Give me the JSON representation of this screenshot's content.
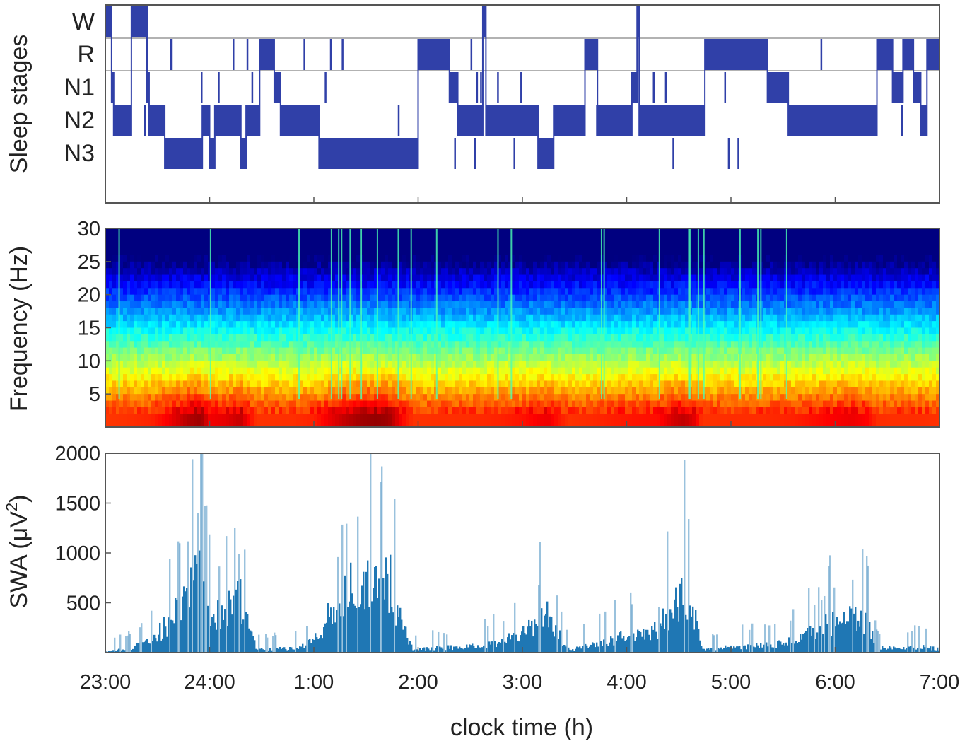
{
  "chart_data": [
    {
      "type": "line",
      "ylabel": "Sleep stages",
      "stage_labels": [
        "W",
        "R",
        "N1",
        "N2",
        "N3"
      ],
      "xlim": [
        23,
        31
      ],
      "hypnogram": [
        [
          23.0,
          "W"
        ],
        [
          23.06,
          "N1"
        ],
        [
          23.08,
          "N2"
        ],
        [
          23.25,
          "W"
        ],
        [
          23.4,
          "N1"
        ],
        [
          23.42,
          "N2"
        ],
        [
          23.57,
          "N3"
        ],
        [
          23.93,
          "N2"
        ],
        [
          24.0,
          "N3"
        ],
        [
          24.05,
          "N2"
        ],
        [
          24.3,
          "N3"
        ],
        [
          24.35,
          "N2"
        ],
        [
          24.48,
          "R"
        ],
        [
          24.62,
          "N1"
        ],
        [
          24.68,
          "N2"
        ],
        [
          25.05,
          "N3"
        ],
        [
          25.18,
          "N3"
        ],
        [
          25.4,
          "N3"
        ],
        [
          25.6,
          "N3"
        ],
        [
          25.72,
          "N3"
        ],
        [
          26.0,
          "R"
        ],
        [
          26.3,
          "N1"
        ],
        [
          26.38,
          "N2"
        ],
        [
          26.6,
          "N2"
        ],
        [
          26.62,
          "W"
        ],
        [
          26.65,
          "N2"
        ],
        [
          26.7,
          "N2"
        ],
        [
          27.15,
          "N3"
        ],
        [
          27.3,
          "N2"
        ],
        [
          27.6,
          "R"
        ],
        [
          27.72,
          "N2"
        ],
        [
          28.05,
          "N1"
        ],
        [
          28.1,
          "W"
        ],
        [
          28.12,
          "N2"
        ],
        [
          28.4,
          "N2"
        ],
        [
          28.6,
          "N2"
        ],
        [
          28.75,
          "R"
        ],
        [
          29.35,
          "N1"
        ],
        [
          29.55,
          "N2"
        ],
        [
          29.9,
          "N2"
        ],
        [
          30.1,
          "N2"
        ],
        [
          30.25,
          "N2"
        ],
        [
          30.4,
          "R"
        ],
        [
          30.55,
          "N1"
        ],
        [
          30.65,
          "R"
        ],
        [
          30.75,
          "N1"
        ],
        [
          30.82,
          "N2"
        ],
        [
          30.88,
          "R"
        ],
        [
          31.0,
          "R"
        ]
      ]
    },
    {
      "type": "heatmap",
      "ylabel": "Frequency (Hz)",
      "ylim": [
        0,
        30
      ],
      "yticks": [
        5,
        10,
        15,
        20,
        25,
        30
      ],
      "xlim": [
        23,
        31
      ],
      "colormap": "jet"
    },
    {
      "type": "bar",
      "ylabel": "SWA (μV²)",
      "ylabel_main": "SWA (μV",
      "ylabel_sup": "2",
      "ylabel_close": ")",
      "ylim": [
        0,
        2000
      ],
      "yticks": [
        500,
        1000,
        1500,
        2000
      ],
      "xlim": [
        23,
        31
      ],
      "bar_color": "#1f77b4",
      "envelope": [
        [
          23.0,
          10
        ],
        [
          23.2,
          40
        ],
        [
          23.45,
          120
        ],
        [
          23.6,
          320
        ],
        [
          23.8,
          700
        ],
        [
          23.92,
          800
        ],
        [
          24.0,
          350
        ],
        [
          24.15,
          420
        ],
        [
          24.3,
          600
        ],
        [
          24.38,
          250
        ],
        [
          24.45,
          30
        ],
        [
          24.8,
          50
        ],
        [
          25.0,
          120
        ],
        [
          25.15,
          380
        ],
        [
          25.3,
          620
        ],
        [
          25.45,
          780
        ],
        [
          25.6,
          850
        ],
        [
          25.72,
          780
        ],
        [
          25.85,
          260
        ],
        [
          25.95,
          30
        ],
        [
          26.2,
          50
        ],
        [
          26.5,
          60
        ],
        [
          26.8,
          120
        ],
        [
          27.0,
          200
        ],
        [
          27.15,
          330
        ],
        [
          27.25,
          380
        ],
        [
          27.35,
          180
        ],
        [
          27.45,
          30
        ],
        [
          27.7,
          90
        ],
        [
          27.9,
          150
        ],
        [
          28.1,
          200
        ],
        [
          28.3,
          230
        ],
        [
          28.45,
          520
        ],
        [
          28.55,
          620
        ],
        [
          28.65,
          420
        ],
        [
          28.72,
          30
        ],
        [
          29.0,
          60
        ],
        [
          29.3,
          70
        ],
        [
          29.6,
          120
        ],
        [
          29.8,
          220
        ],
        [
          30.0,
          320
        ],
        [
          30.15,
          380
        ],
        [
          30.3,
          300
        ],
        [
          30.4,
          60
        ],
        [
          30.6,
          50
        ],
        [
          30.8,
          60
        ],
        [
          31.0,
          40
        ]
      ]
    }
  ],
  "x_axis": {
    "ticks": [
      "23:00",
      "24:00",
      "1:00",
      "2:00",
      "3:00",
      "4:00",
      "5:00",
      "6:00",
      "7:00"
    ],
    "label": "clock time (h)"
  }
}
